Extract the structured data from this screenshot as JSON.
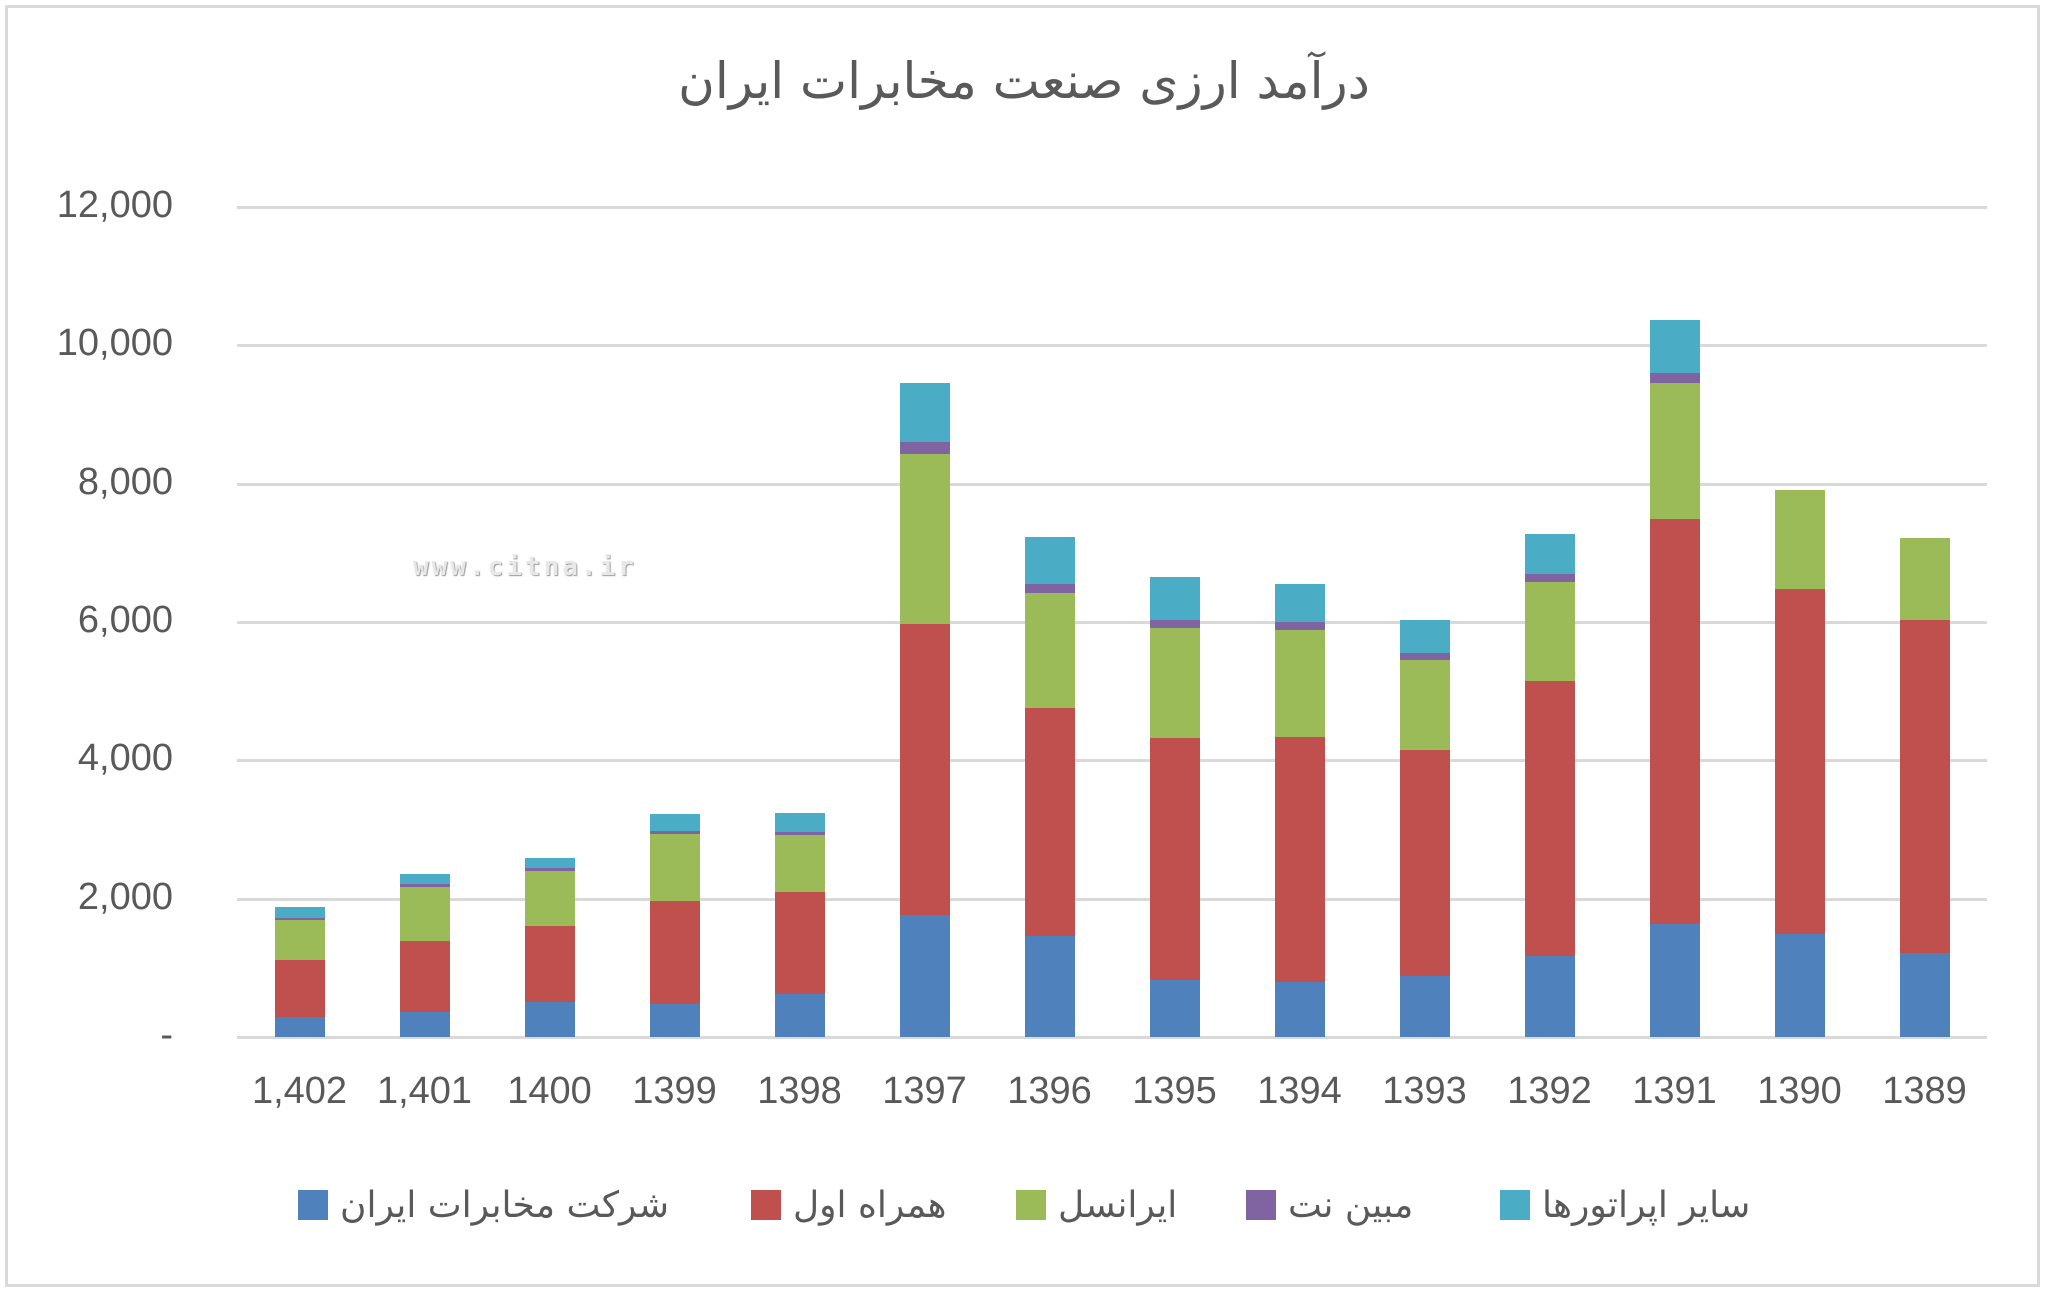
{
  "chart_data": {
    "type": "bar",
    "stacked": true,
    "title": "درآمد ارزی صنعت مخابرات ایران",
    "xlabel": "",
    "ylabel": "",
    "ylim": [
      0,
      12000
    ],
    "y_ticks": [
      {
        "value": 12000,
        "label": "12,000"
      },
      {
        "value": 10000,
        "label": "10,000"
      },
      {
        "value": 8000,
        "label": "8,000"
      },
      {
        "value": 6000,
        "label": "6,000"
      },
      {
        "value": 4000,
        "label": "4,000"
      },
      {
        "value": 2000,
        "label": "2,000"
      },
      {
        "value": 0,
        "label": "-"
      }
    ],
    "grid": true,
    "legend_position": "bottom",
    "categories": [
      "1,402",
      "1,401",
      "1400",
      "1399",
      "1398",
      "1397",
      "1396",
      "1395",
      "1394",
      "1393",
      "1392",
      "1391",
      "1390",
      "1389"
    ],
    "series": [
      {
        "name": "شرکت مخابرات ایران",
        "color": "#4f81bd",
        "values": [
          290,
          360,
          505,
          480,
          620,
          1770,
          1455,
          820,
          790,
          885,
          1175,
          1635,
          1485,
          1215
        ]
      },
      {
        "name": "همراه اول",
        "color": "#c0504d",
        "values": [
          825,
          1030,
          1105,
          1490,
          1480,
          4200,
          3305,
          3505,
          3550,
          3260,
          3975,
          5860,
          4995,
          4810
        ]
      },
      {
        "name": "ایرانسل",
        "color": "#9bbb59",
        "values": [
          580,
          785,
          795,
          970,
          825,
          2465,
          1655,
          1595,
          1545,
          1310,
          1425,
          1960,
          1425,
          1185
        ]
      },
      {
        "name": "مبین نت",
        "color": "#8064a2",
        "values": [
          30,
          40,
          45,
          45,
          45,
          170,
          140,
          115,
          115,
          90,
          115,
          145,
          0,
          0
        ]
      },
      {
        "name": "سایر اپراتورها",
        "color": "#4bacc6",
        "values": [
          160,
          135,
          145,
          245,
          275,
          845,
          670,
          615,
          550,
          480,
          580,
          760,
          0,
          0
        ]
      }
    ]
  },
  "watermark": "www.citna.ir",
  "colors": {
    "text": "#595959",
    "grid": "#d9d9d9",
    "border": "#d9d9d9"
  }
}
